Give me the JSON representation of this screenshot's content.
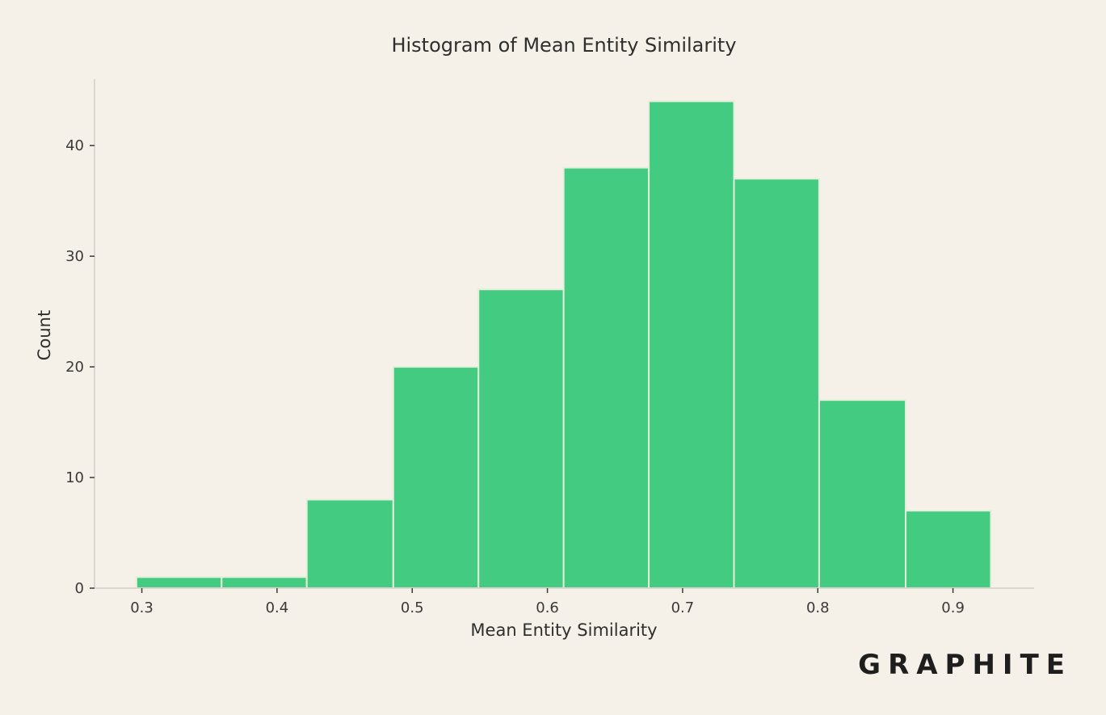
{
  "brand": {
    "logo_text": "GRAPHITE"
  },
  "colors": {
    "background": "#f5f0e8",
    "bar_fill": "#43cb82",
    "bar_edge": "#e3efd9",
    "axis_line": "#dcd8d0",
    "tick_mark": "#3a3a3a",
    "text": "#2f2f2f"
  },
  "chart_data": {
    "type": "bar",
    "subtype": "histogram",
    "title": "Histogram of Mean Entity Similarity",
    "xlabel": "Mean Entity Similarity",
    "ylabel": "Count",
    "bins": [
      [
        0.296,
        0.359
      ],
      [
        0.359,
        0.422
      ],
      [
        0.422,
        0.486
      ],
      [
        0.486,
        0.549
      ],
      [
        0.549,
        0.612
      ],
      [
        0.612,
        0.675
      ],
      [
        0.675,
        0.738
      ],
      [
        0.738,
        0.801
      ],
      [
        0.801,
        0.865
      ],
      [
        0.865,
        0.928
      ]
    ],
    "values": [
      1,
      1,
      8,
      20,
      27,
      38,
      44,
      37,
      17,
      7
    ],
    "xlim": [
      0.265,
      0.96
    ],
    "ylim": [
      0,
      46
    ],
    "xticks": [
      0.3,
      0.4,
      0.5,
      0.6,
      0.7,
      0.8,
      0.9
    ],
    "xtick_labels": [
      "0.3",
      "0.4",
      "0.5",
      "0.6",
      "0.7",
      "0.8",
      "0.9"
    ],
    "yticks": [
      0,
      10,
      20,
      30,
      40
    ],
    "ytick_labels": [
      "0",
      "10",
      "20",
      "30",
      "40"
    ],
    "grid": false,
    "legend": "none"
  }
}
